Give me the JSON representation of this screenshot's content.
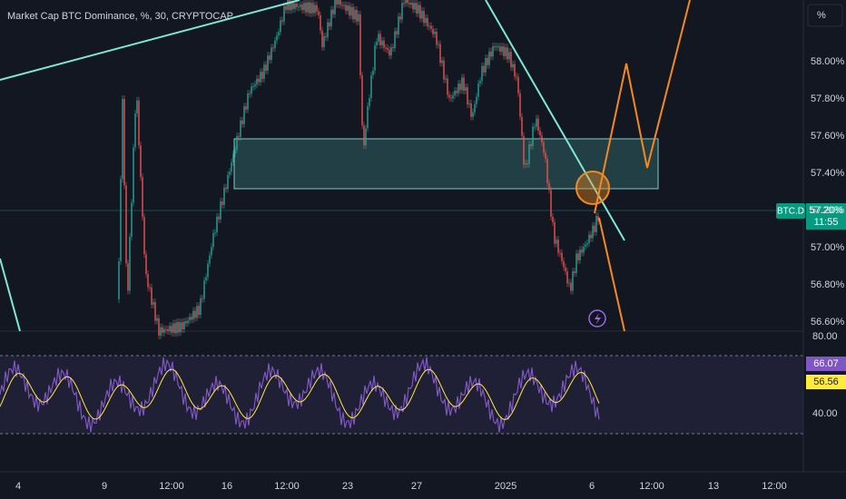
{
  "header": {
    "title": "Market Cap BTC Dominance, %, 30, CRYPTOCAP"
  },
  "price_axis": {
    "unit": "%",
    "labels": [
      "58.00%",
      "57.80%",
      "57.60%",
      "57.40%",
      "57.20%",
      "57.00%",
      "56.80%",
      "56.60%"
    ]
  },
  "price_tag": {
    "symbol": "BTC.D",
    "price": "57.20%",
    "countdown": "11:55"
  },
  "rsi_axis": {
    "labels": [
      "80.00",
      "40.00"
    ]
  },
  "rsi_tags": {
    "rsi": "66.07",
    "ma": "56.56"
  },
  "time_axis": {
    "labels": [
      "4",
      "9",
      "12:00",
      "16",
      "12:00",
      "23",
      "27",
      "2025",
      "6",
      "12:00",
      "13",
      "12:00"
    ]
  }
}
